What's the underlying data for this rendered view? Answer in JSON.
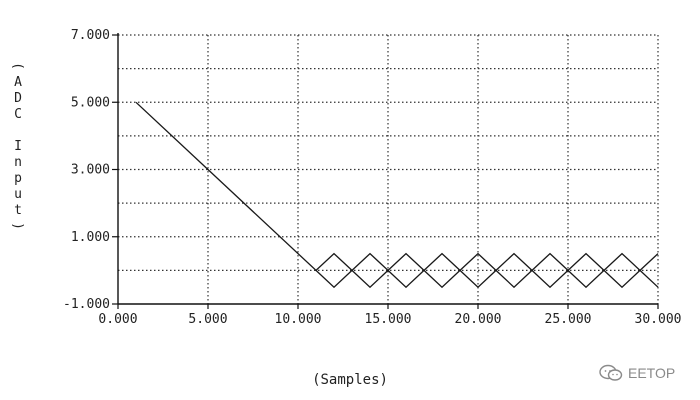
{
  "chart_data": {
    "type": "line",
    "title": "",
    "xlabel": "(Samples)",
    "ylabel": "(ADC Input)",
    "xlim": [
      0,
      30
    ],
    "ylim": [
      -1,
      7
    ],
    "x_ticks": [
      0,
      5,
      10,
      15,
      20,
      25,
      30
    ],
    "x_tick_labels": [
      "0.000",
      "5.000",
      "10.000",
      "15.000",
      "20.000",
      "25.000",
      "30.000"
    ],
    "y_ticks": [
      -1,
      1,
      3,
      5,
      7
    ],
    "y_tick_labels": [
      "-1.000",
      "1.000",
      "3.000",
      "5.000",
      "7.000"
    ],
    "grid": true,
    "grid_x_step": 5,
    "grid_y_step": 1,
    "series": [
      {
        "x": [
          1,
          11,
          12,
          13,
          14,
          15,
          16,
          17,
          18,
          19,
          20,
          21,
          22,
          23,
          24,
          25,
          26,
          27,
          28,
          29,
          30
        ],
        "y": [
          5,
          0,
          0.5,
          0,
          -0.5,
          0,
          0.5,
          0,
          -0.5,
          0,
          0.5,
          0,
          -0.5,
          0,
          0.5,
          0,
          -0.5,
          0,
          0.5,
          0,
          -0.5
        ]
      },
      {
        "x": [
          11,
          12,
          13,
          14,
          15,
          16,
          17,
          18,
          19,
          20,
          21,
          22,
          23,
          24,
          25,
          26,
          27,
          28,
          29,
          30
        ],
        "y": [
          0,
          -0.5,
          0,
          0.5,
          0,
          -0.5,
          0,
          0.5,
          0,
          -0.5,
          0,
          0.5,
          0,
          -0.5,
          0,
          0.5,
          0,
          -0.5,
          0,
          0.5
        ]
      }
    ]
  },
  "watermark": {
    "text": "EETOP",
    "icon": "wechat-icon",
    "color": "#8a8a8a"
  }
}
